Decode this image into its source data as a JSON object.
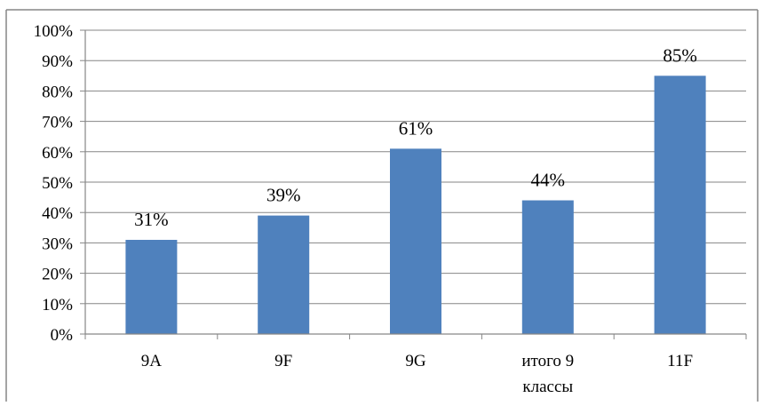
{
  "chart_data": {
    "type": "bar",
    "categories": [
      [
        "9A"
      ],
      [
        "9F"
      ],
      [
        "9G"
      ],
      [
        "итого 9",
        "классы"
      ],
      [
        "11F"
      ]
    ],
    "values": [
      31,
      39,
      61,
      44,
      85
    ],
    "data_labels": [
      "31%",
      "39%",
      "61%",
      "44%",
      "85%"
    ],
    "y_ticks": [
      "0%",
      "10%",
      "20%",
      "30%",
      "40%",
      "50%",
      "60%",
      "70%",
      "80%",
      "90%",
      "100%"
    ],
    "ylim": [
      0,
      100
    ],
    "grid": true,
    "legend": "none",
    "colors": {
      "bar": "#4F81BD",
      "grid": "#868686",
      "axis": "#868686",
      "frame": "#868686"
    }
  }
}
